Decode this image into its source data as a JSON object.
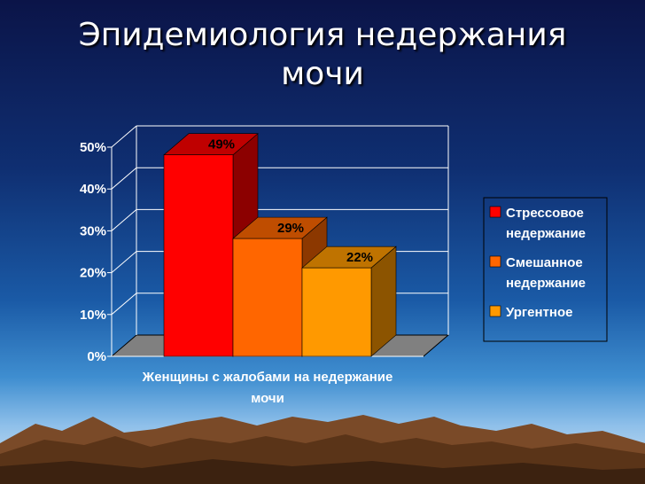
{
  "slide": {
    "title": "Эпидемиология недержания мочи"
  },
  "colors": {
    "background_top": "#0b1448",
    "background_bottom": "#8fc0ea",
    "series": [
      "#ff0000",
      "#ff6600",
      "#ff9900"
    ]
  },
  "chart_data": {
    "type": "bar",
    "style": "3d-clustered",
    "title": "",
    "xlabel": "",
    "ylabel": "",
    "categories": [
      "Женщины с жалобами на недержание мочи"
    ],
    "category_label_lines": [
      "Женщины с жалобами на недержание",
      "мочи"
    ],
    "series": [
      {
        "name": "Стрессовое недержание",
        "legend_lines": [
          "Стрессовое",
          "недержание"
        ],
        "values": [
          49
        ],
        "label": "49%"
      },
      {
        "name": "Смешанное недержание",
        "legend_lines": [
          "Смешанное",
          "недержание"
        ],
        "values": [
          29
        ],
        "label": "29%"
      },
      {
        "name": "Ургентное",
        "legend_lines": [
          "Ургентное"
        ],
        "values": [
          22
        ],
        "label": "22%"
      }
    ],
    "ylim": [
      0,
      50
    ],
    "yticks": [
      "0%",
      "10%",
      "20%",
      "30%",
      "40%",
      "50%"
    ],
    "grid": true,
    "legend": "right"
  }
}
